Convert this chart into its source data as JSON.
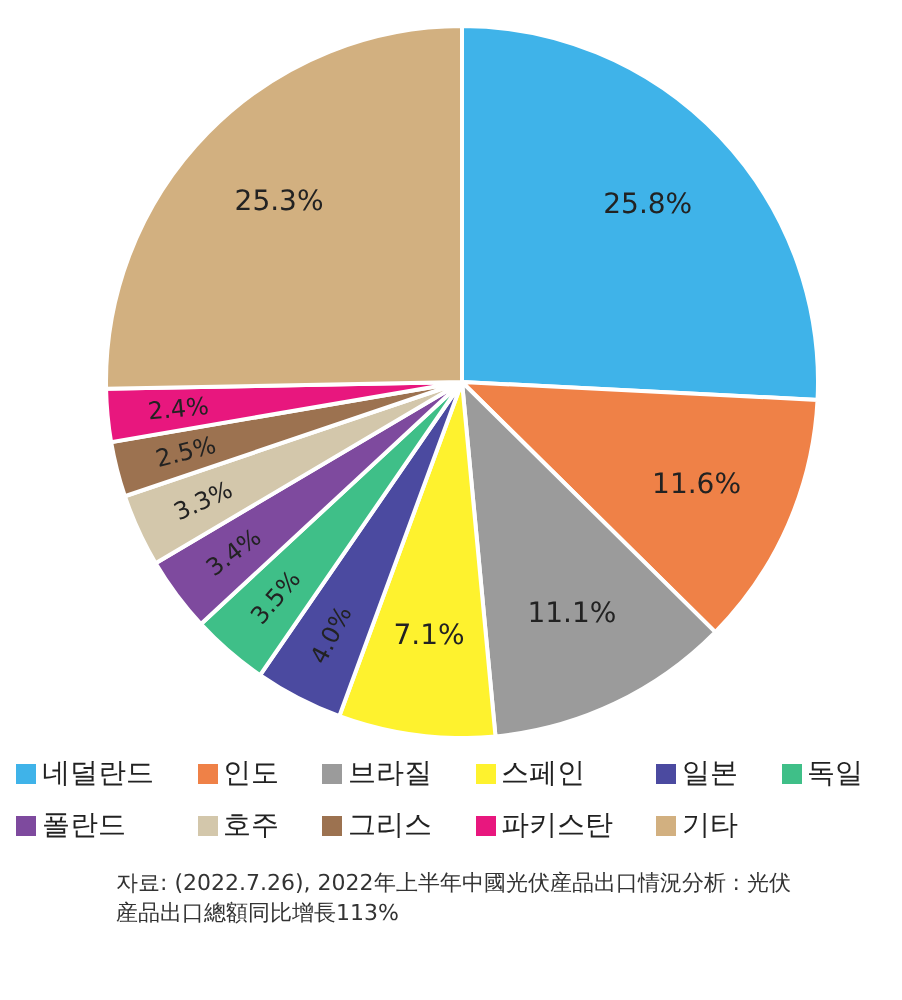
{
  "chart_data": {
    "type": "pie",
    "categories": [
      "네덜란드",
      "인도",
      "브라질",
      "스페인",
      "일본",
      "독일",
      "폴란드",
      "호주",
      "그리스",
      "파키스탄",
      "기타"
    ],
    "values": [
      25.8,
      11.6,
      11.1,
      7.1,
      4.0,
      3.5,
      3.4,
      3.3,
      2.5,
      2.4,
      25.3
    ],
    "value_labels": [
      "25.8%",
      "11.6%",
      "11.1%",
      "7.1%",
      "4.0%",
      "3.5%",
      "3.4%",
      "3.3%",
      "2.5%",
      "2.4%",
      "25.3%"
    ],
    "colors": [
      "#3fb3e9",
      "#ef8147",
      "#9b9b9b",
      "#fef22e",
      "#4b4aa0",
      "#3fbf88",
      "#7e4a9e",
      "#d3c7ab",
      "#9c7250",
      "#e8177e",
      "#d2b080"
    ],
    "legend": "bottom",
    "annotations": [
      "자료: (2022.7.26), 2022年上半年中國光伏産品出口情況分析 : 光伏産品出口總額同比增長113%"
    ]
  }
}
